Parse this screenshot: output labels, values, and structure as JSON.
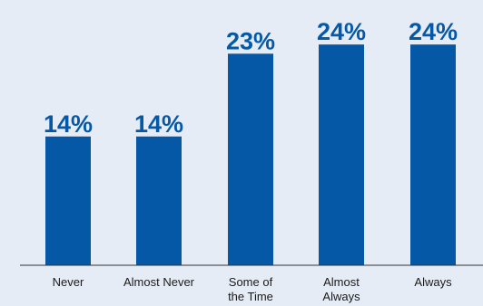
{
  "colors": {
    "background": "#e6ecf6",
    "bar": "#0558a6",
    "label": "#0558a6",
    "axis": "#333333"
  },
  "chart_data": {
    "type": "bar",
    "categories": [
      "Never",
      "Almost Never",
      "Some of the Time",
      "Almost Always",
      "Always"
    ],
    "category_lines": [
      [
        "Never"
      ],
      [
        "Almost Never"
      ],
      [
        "Some of",
        "the Time"
      ],
      [
        "Almost",
        "Always"
      ],
      [
        "Always"
      ]
    ],
    "values": [
      14,
      14,
      23,
      24,
      24
    ],
    "data_labels": [
      "14%",
      "14%",
      "23%",
      "24%",
      "24%"
    ],
    "unit": "%",
    "ylim": [
      0,
      25
    ],
    "grid": false,
    "legend": "none"
  }
}
